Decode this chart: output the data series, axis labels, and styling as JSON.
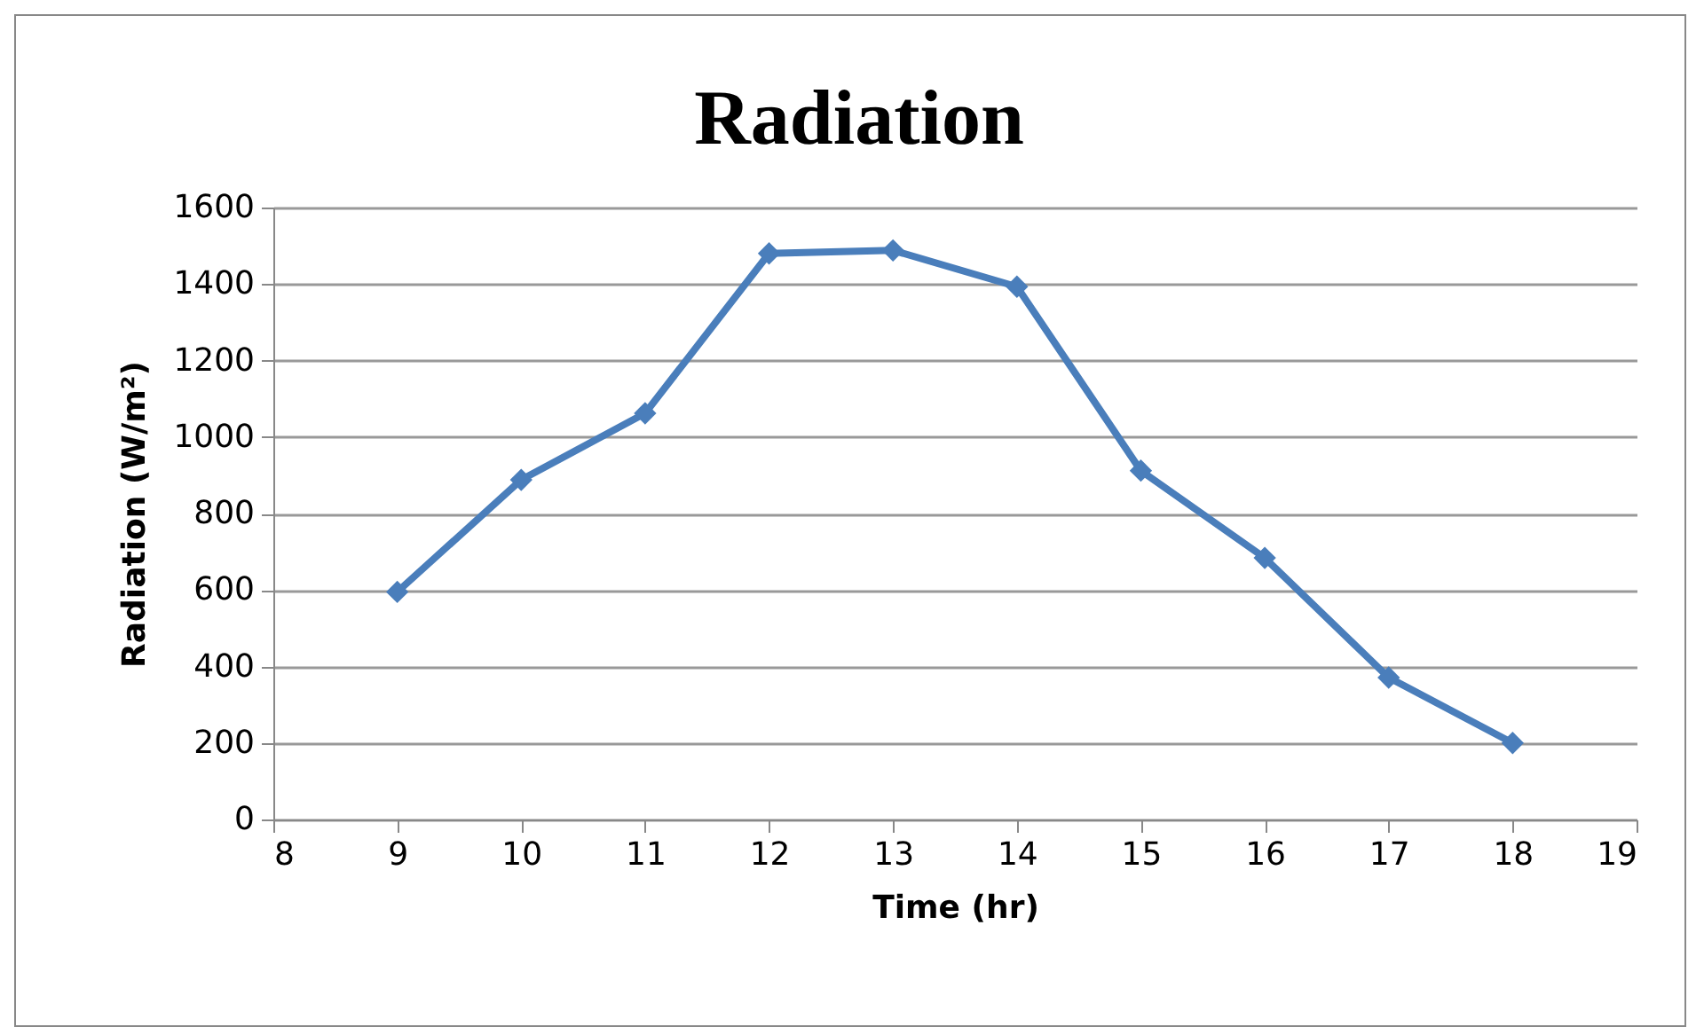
{
  "chart_data": {
    "type": "line",
    "title": "Radiation",
    "xlabel": "Time (hr)",
    "ylabel": "Radiation (W/m²)",
    "x": [
      9,
      10,
      11,
      12,
      13,
      14,
      15,
      16,
      17,
      18
    ],
    "series": [
      {
        "color": "#4a7ebb",
        "values": [
          595,
          888,
          1062,
          1480,
          1488,
          1393,
          912,
          684,
          371,
          200
        ]
      }
    ],
    "xlim": [
      8,
      19
    ],
    "xticks": [
      8,
      9,
      10,
      11,
      12,
      13,
      14,
      15,
      16,
      17,
      18,
      19
    ],
    "ylim": [
      0,
      1600
    ],
    "yticks": [
      0,
      200,
      400,
      600,
      800,
      1000,
      1200,
      1400,
      1600
    ],
    "grid": "y",
    "marker": "diamond"
  }
}
